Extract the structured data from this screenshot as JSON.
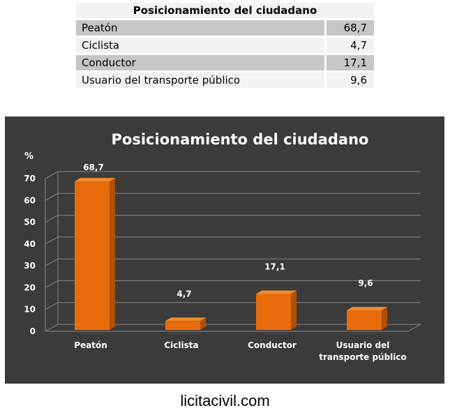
{
  "table": {
    "title": "Posicionamiento del ciudadano",
    "rows": [
      {
        "label": "Peatón",
        "value": "68,7"
      },
      {
        "label": "Ciclista",
        "value": "4,7"
      },
      {
        "label": "Conductor",
        "value": "17,1"
      },
      {
        "label": "Usuario del transporte público",
        "value": "9,6"
      }
    ]
  },
  "chart_data": {
    "type": "bar",
    "title": "Posicionamiento del ciudadano",
    "ylabel": "%",
    "xlabel": "",
    "categories": [
      "Peatón",
      "Ciclista",
      "Conductor",
      "Usuario del transporte público"
    ],
    "category_lines": [
      [
        "Peatón"
      ],
      [
        "Ciclista"
      ],
      [
        "Conductor"
      ],
      [
        "Usuario del",
        "transporte público"
      ]
    ],
    "values": [
      68.7,
      4.7,
      17.1,
      9.6
    ],
    "data_labels": [
      "68,7",
      "4,7",
      "17,1",
      "9,6"
    ],
    "ylim": [
      0,
      70
    ],
    "yticks": [
      0,
      10,
      20,
      30,
      40,
      50,
      60,
      70
    ],
    "grid": true,
    "legend": "none",
    "colors": {
      "bar": "#e86c0c",
      "bar_side": "#b24f05",
      "bar_top": "#f08a2e",
      "background": "#3b3b3b"
    }
  },
  "footer": "licitacivil.com"
}
